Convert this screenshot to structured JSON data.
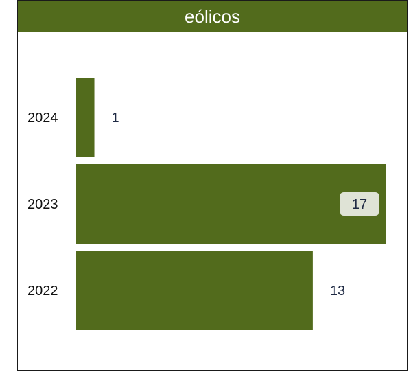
{
  "title": "eólicos",
  "chart_data": {
    "type": "bar",
    "orientation": "horizontal",
    "title": "eólicos",
    "categories": [
      "2024",
      "2023",
      "2022"
    ],
    "values": [
      1,
      17,
      13
    ],
    "highlighted_value_label": "2023",
    "xlim": [
      0,
      17
    ],
    "grid": false,
    "legend": "none",
    "colors": {
      "bar": "#526b1c",
      "header": "#526b1c",
      "highlight_badge": "#dfe3d6"
    }
  }
}
